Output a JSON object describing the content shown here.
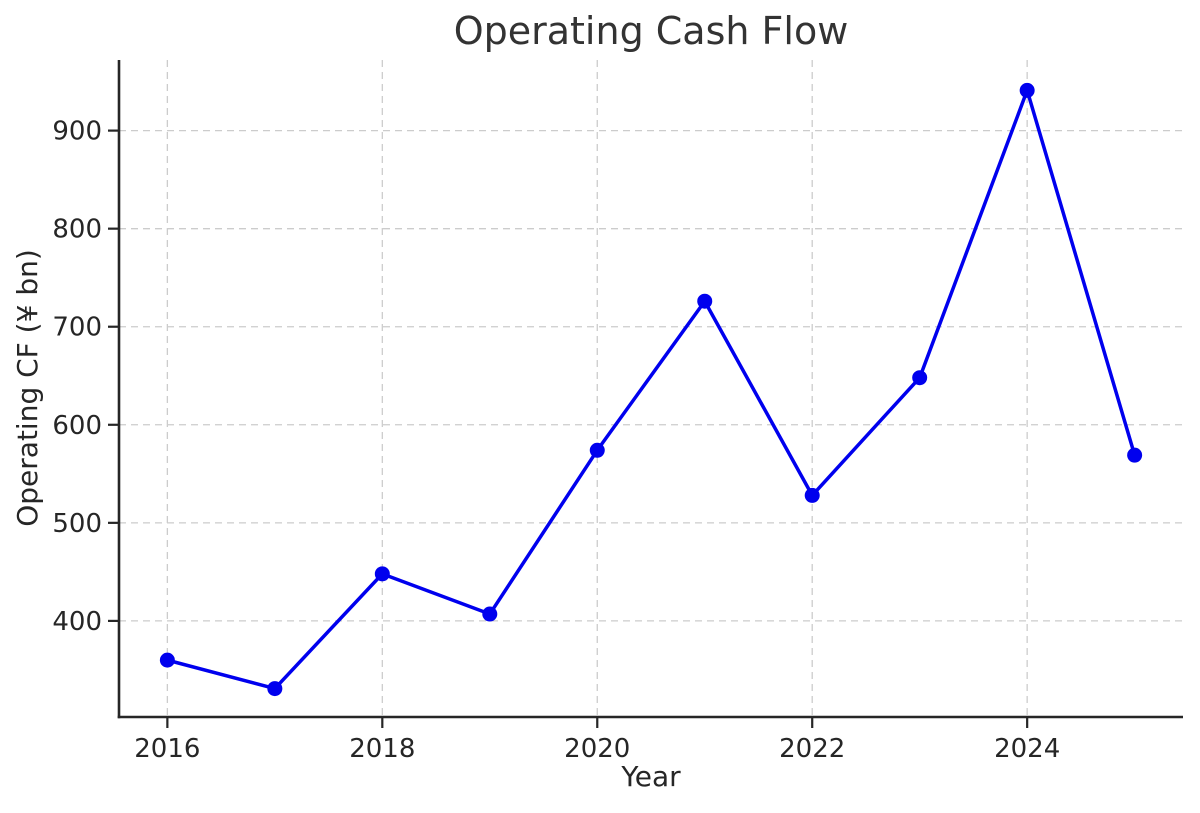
{
  "chart_data": {
    "type": "line",
    "title": "Operating Cash Flow",
    "xlabel": "Year",
    "ylabel": "Operating CF (¥ bn)",
    "x": [
      2016,
      2017,
      2018,
      2019,
      2020,
      2021,
      2022,
      2023,
      2024,
      2025
    ],
    "values": [
      360,
      331,
      448,
      407,
      574,
      726,
      528,
      648,
      941,
      569
    ],
    "xticks": [
      2016,
      2018,
      2020,
      2022,
      2024
    ],
    "yticks": [
      400,
      500,
      600,
      700,
      800,
      900
    ],
    "xlim": [
      2015.55,
      2025.45
    ],
    "ylim": [
      302,
      972
    ],
    "grid": true,
    "grid_style": "dashed",
    "legend_position": "none",
    "line_color": "#0000ee",
    "marker_style": "circle",
    "grid_color": "#cccccc",
    "axis_color": "#262626",
    "text_color": "#262626",
    "title_color": "#333333",
    "background_color": "#ffffff"
  }
}
